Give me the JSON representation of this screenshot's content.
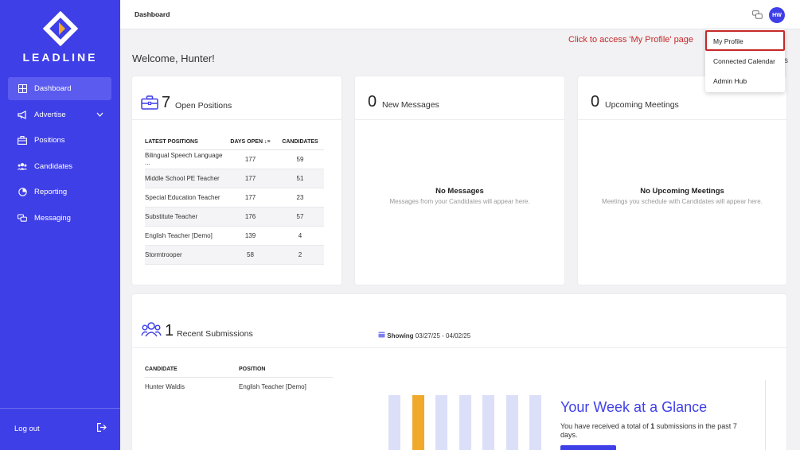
{
  "brand": {
    "logo_text": "LEADLINE",
    "accent": "#3f3fe8",
    "annotation_color": "#c62828"
  },
  "sidebar": {
    "items": [
      {
        "label": "Dashboard",
        "icon": "dashboard-grid-icon",
        "active": true
      },
      {
        "label": "Advertise",
        "icon": "megaphone-icon",
        "expandable": true
      },
      {
        "label": "Positions",
        "icon": "briefcase-icon"
      },
      {
        "label": "Candidates",
        "icon": "people-icon"
      },
      {
        "label": "Reporting",
        "icon": "chart-pie-icon"
      },
      {
        "label": "Messaging",
        "icon": "chat-bubbles-icon"
      }
    ],
    "logout_label": "Log out"
  },
  "header": {
    "title": "Dashboard",
    "avatar_initials": "HW"
  },
  "welcome": "Welcome, Hunter!",
  "annotation": "Click to access 'My Profile' page",
  "stray_char": "s",
  "profile_menu": {
    "items": [
      "My Profile",
      "Connected Calendar",
      "Admin Hub"
    ]
  },
  "open_positions": {
    "count": "7",
    "label": "Open Positions",
    "columns": [
      "LATEST POSITIONS",
      "DAYS OPEN",
      "CANDIDATES"
    ],
    "rows": [
      {
        "position": "Bilingual Speech Language ...",
        "days": "177",
        "candidates": "59"
      },
      {
        "position": "Middle School PE Teacher",
        "days": "177",
        "candidates": "51"
      },
      {
        "position": "Special Education Teacher",
        "days": "177",
        "candidates": "23"
      },
      {
        "position": "Substitute Teacher",
        "days": "176",
        "candidates": "57"
      },
      {
        "position": "English Teacher [Demo]",
        "days": "139",
        "candidates": "4"
      },
      {
        "position": "Stormtrooper",
        "days": "58",
        "candidates": "2"
      }
    ]
  },
  "messages": {
    "count": "0",
    "label": "New Messages",
    "empty_title": "No Messages",
    "empty_sub": "Messages from your Candidates will appear here."
  },
  "meetings": {
    "count": "0",
    "label": "Upcoming Meetings",
    "empty_title": "No Upcoming Meetings",
    "empty_sub": "Meetings you schedule with Candidates will appear here."
  },
  "submissions": {
    "count": "1",
    "label": "Recent Submissions",
    "showing_label": "Showing",
    "date_range": "03/27/25 - 04/02/25",
    "columns": [
      "CANDIDATE",
      "POSITION"
    ],
    "rows": [
      {
        "candidate": "Hunter Waldis",
        "position": "English Teacher [Demo]"
      }
    ]
  },
  "week_glance": {
    "title": "Your Week at a Glance",
    "text_prefix": "You have received a total of ",
    "total": "1",
    "text_suffix": " submissions in the past 7 days.",
    "bar_colors": {
      "default": "#dcdff8",
      "highlight": "#f0a92a"
    },
    "highlight_index": 1,
    "bar_count": 7
  }
}
